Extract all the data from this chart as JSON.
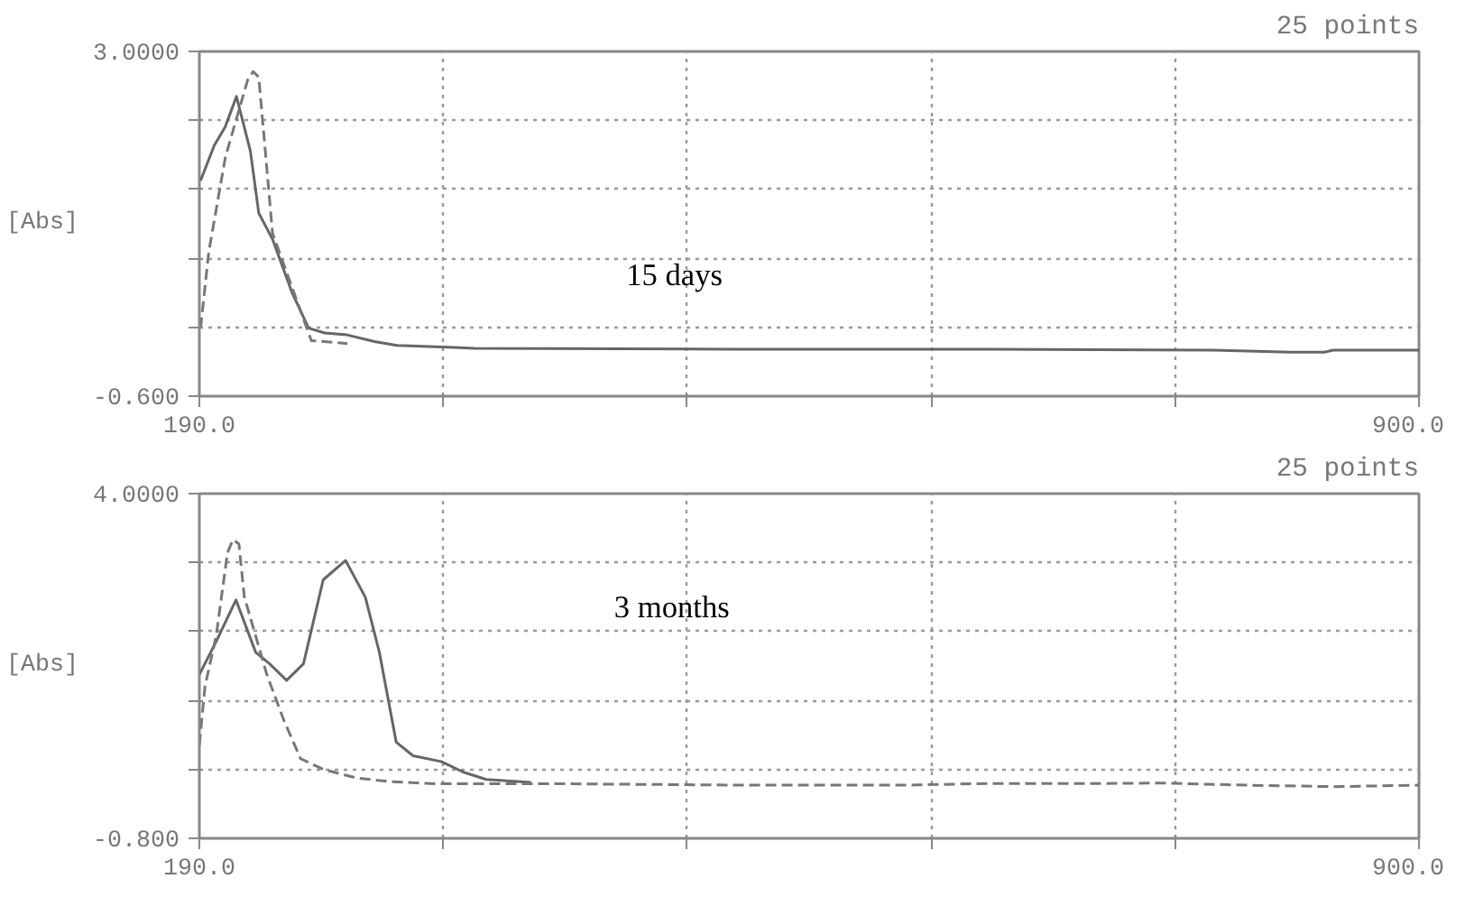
{
  "chart_data": [
    {
      "type": "line",
      "title": "25 points",
      "ylabel": "[Abs]",
      "annotations": [
        "15 days"
      ],
      "grid": true,
      "xlim": [
        190,
        900
      ],
      "ylim": [
        -0.6,
        3.0
      ],
      "xticks": [
        {
          "value": 190,
          "label": "190.0"
        },
        {
          "value": 332,
          "label": null
        },
        {
          "value": 474,
          "label": null
        },
        {
          "value": 616,
          "label": null
        },
        {
          "value": 758,
          "label": null
        },
        {
          "value": 900,
          "label": "900.0"
        }
      ],
      "yticks": [
        {
          "value": -0.6,
          "label": "-0.600"
        },
        {
          "value": 0.12,
          "label": null
        },
        {
          "value": 0.84,
          "label": null
        },
        {
          "value": 1.56,
          "label": null
        },
        {
          "value": 2.28,
          "label": null
        },
        {
          "value": 3.0,
          "label": "3.0000"
        }
      ],
      "series": [
        {
          "color": "#666666",
          "line_style": "solid",
          "x": [
            190.7,
            198.7,
            205,
            211.6,
            219.7,
            224.6,
            232.6,
            244,
            253.6,
            263,
            276,
            292,
            305,
            350,
            500,
            650,
            780,
            825,
            845,
            850,
            900
          ],
          "values": [
            1.65,
            2.02,
            2.21,
            2.53,
            1.96,
            1.31,
            1.04,
            0.48,
            0.11,
            0.06,
            0.04,
            -0.03,
            -0.07,
            -0.1,
            -0.109,
            -0.11,
            -0.119,
            -0.14,
            -0.14,
            -0.12,
            -0.12
          ]
        },
        {
          "color": "#777777",
          "line_style": "dashed",
          "x": [
            190.7,
            195.5,
            205.2,
            218.1,
            221.3,
            224.6,
            232.6,
            255.2,
            276.2
          ],
          "values": [
            0.11,
            0.91,
            1.9,
            2.7,
            2.79,
            2.73,
            1.1,
            -0.02,
            -0.05
          ]
        }
      ]
    },
    {
      "type": "line",
      "title": "25 points",
      "ylabel": "[Abs]",
      "annotations": [
        "3 months"
      ],
      "grid": true,
      "xlim": [
        190,
        900
      ],
      "ylim": [
        -0.8,
        4.0
      ],
      "xticks": [
        {
          "value": 190,
          "label": "190.0"
        },
        {
          "value": 332,
          "label": null
        },
        {
          "value": 474,
          "label": null
        },
        {
          "value": 616,
          "label": null
        },
        {
          "value": 758,
          "label": null
        },
        {
          "value": 900,
          "label": "900.0"
        }
      ],
      "yticks": [
        {
          "value": -0.8,
          "label": "-0.800"
        },
        {
          "value": 0.16,
          "label": null
        },
        {
          "value": 1.12,
          "label": null
        },
        {
          "value": 2.08,
          "label": null
        },
        {
          "value": 3.04,
          "label": null
        },
        {
          "value": 4.0,
          "label": "4.0000"
        }
      ],
      "series": [
        {
          "color": "#666666",
          "line_style": "solid",
          "x": [
            190,
            199.8,
            211.3,
            222.8,
            230.9,
            240.8,
            250.6,
            262.1,
            275.1,
            286.6,
            294.8,
            304.6,
            314.4,
            330.8,
            343.9,
            357,
            383
          ],
          "values": [
            1.48,
            1.94,
            2.52,
            1.79,
            1.63,
            1.4,
            1.63,
            2.8,
            3.07,
            2.56,
            1.79,
            0.54,
            0.35,
            0.27,
            0.12,
            0.02,
            -0.02
          ]
        },
        {
          "color": "#777777",
          "line_style": "dashed",
          "x": [
            190,
            193.3,
            199.8,
            206.4,
            209.6,
            213,
            216.2,
            229.3,
            239.1,
            248.9,
            262.1,
            281.7,
            301.4,
            327.5,
            400,
            500,
            600,
            650,
            700,
            750,
            800,
            850,
            900
          ],
          "values": [
            0.5,
            1.32,
            2.02,
            3.18,
            3.36,
            3.3,
            2.56,
            1.48,
            0.85,
            0.31,
            0.16,
            0.04,
            -0.01,
            -0.04,
            -0.04,
            -0.058,
            -0.06,
            -0.036,
            -0.038,
            -0.03,
            -0.06,
            -0.08,
            -0.06
          ]
        }
      ]
    }
  ]
}
